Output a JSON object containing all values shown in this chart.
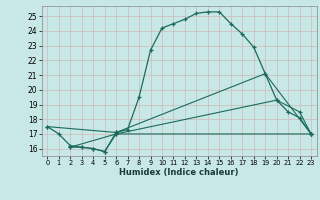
{
  "xlabel": "Humidex (Indice chaleur)",
  "bg_color": "#c8e8e8",
  "line_color": "#1a6b5a",
  "grid_color": "#b8d8d8",
  "xlim": [
    -0.5,
    23.5
  ],
  "ylim": [
    15.5,
    25.7
  ],
  "xticks": [
    0,
    1,
    2,
    3,
    4,
    5,
    6,
    7,
    8,
    9,
    10,
    11,
    12,
    13,
    14,
    15,
    16,
    17,
    18,
    19,
    20,
    21,
    22,
    23
  ],
  "yticks": [
    16,
    17,
    18,
    19,
    20,
    21,
    22,
    23,
    24,
    25
  ],
  "line1_x": [
    0,
    1,
    2,
    3,
    4,
    5,
    6,
    7,
    8,
    9,
    10,
    11,
    12,
    13,
    14,
    15,
    16,
    17,
    18,
    19,
    20,
    21,
    22,
    23
  ],
  "line1_y": [
    17.5,
    17.0,
    16.2,
    16.1,
    16.0,
    15.8,
    17.1,
    17.3,
    19.5,
    22.7,
    24.2,
    24.5,
    24.8,
    25.2,
    25.3,
    25.3,
    24.5,
    23.8,
    22.9,
    21.1,
    19.3,
    18.5,
    18.1,
    17.0
  ],
  "line2_x": [
    0,
    6,
    19,
    23
  ],
  "line2_y": [
    17.5,
    17.1,
    21.1,
    17.0
  ],
  "line3_x": [
    2,
    6,
    20,
    22,
    23
  ],
  "line3_y": [
    16.1,
    17.0,
    19.3,
    18.5,
    17.0
  ],
  "line4_x": [
    2,
    3,
    4,
    5,
    6,
    23
  ],
  "line4_y": [
    16.1,
    16.1,
    16.0,
    15.8,
    17.0,
    17.0
  ]
}
